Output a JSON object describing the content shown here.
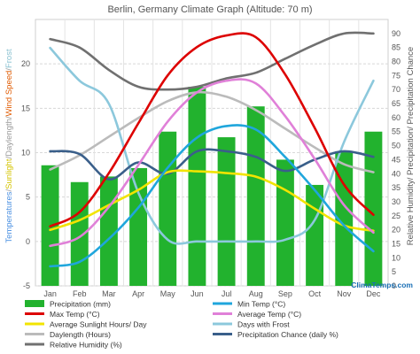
{
  "chart_data": {
    "type": "bar",
    "title": "Berlin, Germany Climate Graph (Altitude: 70 m)",
    "categories": [
      "Jan",
      "Feb",
      "Mar",
      "Apr",
      "May",
      "Jun",
      "Jul",
      "Aug",
      "Sep",
      "Oct",
      "Nov",
      "Dec"
    ],
    "left_axis": {
      "ylim": [
        -5,
        25
      ],
      "ticks": [
        "-5",
        "0",
        "5",
        "10",
        "15",
        "20"
      ]
    },
    "right_axis": {
      "ylim": [
        0,
        95
      ],
      "ticks": [
        "0",
        "5",
        "10",
        "15",
        "20",
        "25",
        "30",
        "35",
        "40",
        "45",
        "50",
        "55",
        "60",
        "65",
        "70",
        "75",
        "80",
        "85",
        "90"
      ],
      "label": "Relative Humidity/ Precipitation/ Precipitation Chance"
    },
    "left_axis_label_parts": [
      {
        "text": "Temperatures",
        "color": "#4a90e2"
      },
      {
        "text": "/",
        "color": "#999999"
      },
      {
        "text": "Sunlight",
        "color": "#d4c400"
      },
      {
        "text": "/",
        "color": "#999999"
      },
      {
        "text": "Daylength",
        "color": "#999999"
      },
      {
        "text": "/",
        "color": "#999999"
      },
      {
        "text": "Wind Speed",
        "color": "#e05a00"
      },
      {
        "text": "/",
        "color": "#999999"
      },
      {
        "text": "Frost",
        "color": "#88c0d0"
      }
    ],
    "grid": true,
    "series": [
      {
        "name": "Precipitation (mm)",
        "type": "bar",
        "axis": "right",
        "color": "#22b22e",
        "values": [
          43,
          37,
          39,
          42,
          55,
          71,
          53,
          64,
          45,
          36,
          48,
          55
        ]
      },
      {
        "name": "Min Temp (°C)",
        "type": "line",
        "axis": "left",
        "color": "#1fa6dc",
        "values": [
          -2.8,
          -2.3,
          0.3,
          3.8,
          8.3,
          11.7,
          13.0,
          12.6,
          9.5,
          5.8,
          1.8,
          -1.1
        ]
      },
      {
        "name": "Max Temp (°C)",
        "type": "line",
        "axis": "left",
        "color": "#dd0000",
        "values": [
          1.7,
          3.3,
          7.7,
          13.3,
          18.7,
          21.9,
          23.2,
          23.0,
          18.8,
          12.8,
          6.4,
          3.0
        ]
      },
      {
        "name": "Average Temp (°C)",
        "type": "line",
        "axis": "left",
        "color": "#e080d8",
        "values": [
          -0.5,
          0.5,
          3.9,
          8.6,
          13.5,
          16.8,
          18.1,
          17.8,
          14.1,
          9.3,
          4.1,
          1.0
        ]
      },
      {
        "name": "Average Sunlight Hours/ Day",
        "type": "line",
        "axis": "left",
        "color": "#f2e400",
        "values": [
          1.3,
          2.4,
          4.1,
          5.8,
          7.8,
          7.9,
          7.7,
          7.3,
          5.8,
          3.7,
          1.8,
          1.2
        ]
      },
      {
        "name": "Days with Frost",
        "type": "line",
        "axis": "left",
        "color": "#8cc8dc",
        "values": [
          21.8,
          18.1,
          15.5,
          5.5,
          0.2,
          0,
          0,
          0,
          0.2,
          2.4,
          11.2,
          18.1
        ]
      },
      {
        "name": "Daylength (Hours)",
        "type": "line",
        "axis": "left",
        "color": "#bbbbbb",
        "values": [
          8.1,
          9.7,
          11.8,
          13.9,
          15.8,
          16.8,
          16.3,
          14.8,
          12.7,
          10.6,
          8.7,
          7.8
        ]
      },
      {
        "name": "Precipitation Chance (daily %)",
        "type": "line",
        "axis": "right",
        "color": "#3a5f8a",
        "values": [
          48,
          47,
          38,
          44,
          40,
          48,
          48,
          46,
          41,
          45,
          48,
          46
        ]
      },
      {
        "name": "Relative Humidity (%)",
        "type": "line",
        "axis": "right",
        "color": "#707070",
        "values": [
          88,
          85,
          77,
          71,
          70,
          71,
          74,
          76,
          81,
          86,
          90,
          90
        ]
      }
    ],
    "legend": {
      "placement": "bottom",
      "rows": [
        [
          "Precipitation (mm)",
          "Min Temp (°C)"
        ],
        [
          "Max Temp (°C)",
          "Average Temp (°C)"
        ],
        [
          "Average Sunlight Hours/ Day",
          "Days with Frost"
        ],
        [
          "Daylength (Hours)",
          "Precipitation Chance (daily %)"
        ],
        [
          "Relative Humidity (%)"
        ]
      ]
    },
    "brand": {
      "text": "ClimaTemps.com",
      "color": "#1a6fb5"
    }
  }
}
